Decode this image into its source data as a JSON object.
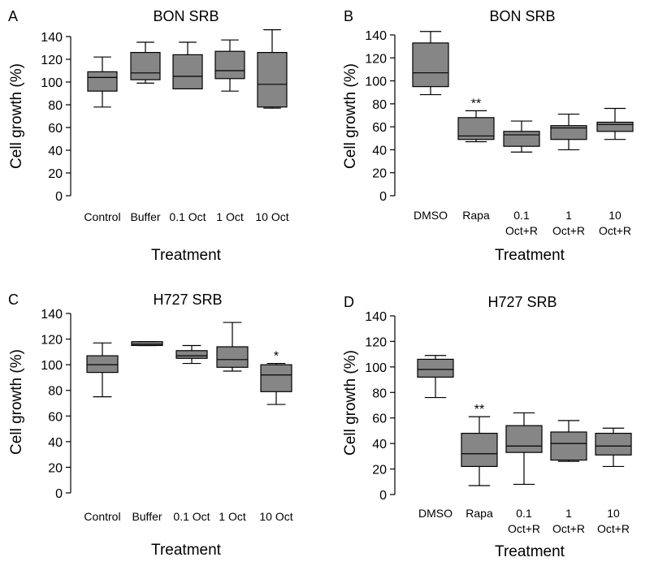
{
  "chart_data": [
    {
      "type": "box",
      "panel": "A",
      "title": "BON SRB",
      "xlabel": "Treatment",
      "ylabel": "Cell growth (%)",
      "ylim": [
        0,
        140
      ],
      "yticks": [
        0,
        20,
        40,
        60,
        80,
        100,
        120,
        140
      ],
      "categories": [
        [
          "Control"
        ],
        [
          "Buffer"
        ],
        [
          "0.1 Oct"
        ],
        [
          "1 Oct"
        ],
        [
          "10 Oct"
        ]
      ],
      "boxes": [
        {
          "min": 78,
          "q1": 92,
          "median": 104,
          "q3": 109,
          "max": 122,
          "annotation": ""
        },
        {
          "min": 99,
          "q1": 102,
          "median": 108,
          "q3": 126,
          "max": 135,
          "annotation": ""
        },
        {
          "min": 94,
          "q1": 94,
          "median": 105,
          "q3": 124,
          "max": 135,
          "annotation": ""
        },
        {
          "min": 92,
          "q1": 103,
          "median": 110,
          "q3": 127,
          "max": 137,
          "annotation": ""
        },
        {
          "min": 77,
          "q1": 78,
          "median": 98,
          "q3": 126,
          "max": 146,
          "annotation": ""
        }
      ]
    },
    {
      "type": "box",
      "panel": "B",
      "title": "BON SRB",
      "xlabel": "Treatment",
      "ylabel": "Cell growth (%)",
      "ylim": [
        0,
        140
      ],
      "yticks": [
        0,
        20,
        40,
        60,
        80,
        100,
        120,
        140
      ],
      "categories": [
        [
          "DMSO"
        ],
        [
          "Rapa"
        ],
        [
          "0.1",
          "Oct+R"
        ],
        [
          "1",
          "Oct+R"
        ],
        [
          "10",
          "Oct+R"
        ]
      ],
      "boxes": [
        {
          "min": 88,
          "q1": 95,
          "median": 107,
          "q3": 133,
          "max": 143,
          "annotation": ""
        },
        {
          "min": 47,
          "q1": 49,
          "median": 52,
          "q3": 68,
          "max": 74,
          "annotation": "**"
        },
        {
          "min": 38,
          "q1": 43,
          "median": 53,
          "q3": 56,
          "max": 65,
          "annotation": ""
        },
        {
          "min": 40,
          "q1": 49,
          "median": 59,
          "q3": 61,
          "max": 71,
          "annotation": ""
        },
        {
          "min": 49,
          "q1": 56,
          "median": 62,
          "q3": 64,
          "max": 76,
          "annotation": ""
        }
      ]
    },
    {
      "type": "box",
      "panel": "C",
      "title": "H727 SRB",
      "xlabel": "Treatment",
      "ylabel": "Cell growth (%)",
      "ylim": [
        0,
        140
      ],
      "yticks": [
        0,
        20,
        40,
        60,
        80,
        100,
        120,
        140
      ],
      "categories": [
        [
          "Control"
        ],
        [
          "Buffer"
        ],
        [
          "0.1 Oct"
        ],
        [
          "1 Oct"
        ],
        [
          "10 Oct"
        ]
      ],
      "boxes": [
        {
          "min": 75,
          "q1": 94,
          "median": 100,
          "q3": 107,
          "max": 117,
          "annotation": ""
        },
        {
          "min": 115,
          "q1": 115,
          "median": 116,
          "q3": 118,
          "max": 118,
          "annotation": ""
        },
        {
          "min": 101,
          "q1": 105,
          "median": 107,
          "q3": 111,
          "max": 115,
          "annotation": ""
        },
        {
          "min": 95,
          "q1": 98,
          "median": 104,
          "q3": 114,
          "max": 133,
          "annotation": ""
        },
        {
          "min": 69,
          "q1": 79,
          "median": 92,
          "q3": 100,
          "max": 101,
          "annotation": "*"
        }
      ]
    },
    {
      "type": "box",
      "panel": "D",
      "title": "H727 SRB",
      "xlabel": "Treatment",
      "ylabel": "Cell growth (%)",
      "ylim": [
        0,
        140
      ],
      "yticks": [
        0,
        20,
        40,
        60,
        80,
        100,
        120,
        140
      ],
      "categories": [
        [
          "DMSO"
        ],
        [
          "Rapa"
        ],
        [
          "0.1",
          "Oct+R"
        ],
        [
          "1",
          "Oct+R"
        ],
        [
          "10",
          "Oct+R"
        ]
      ],
      "boxes": [
        {
          "min": 76,
          "q1": 92,
          "median": 98,
          "q3": 106,
          "max": 109,
          "annotation": ""
        },
        {
          "min": 7,
          "q1": 22,
          "median": 32,
          "q3": 48,
          "max": 61,
          "annotation": "**"
        },
        {
          "min": 8,
          "q1": 33,
          "median": 38,
          "q3": 54,
          "max": 64,
          "annotation": ""
        },
        {
          "min": 26,
          "q1": 27,
          "median": 40,
          "q3": 49,
          "max": 58,
          "annotation": ""
        },
        {
          "min": 22,
          "q1": 31,
          "median": 38,
          "q3": 48,
          "max": 52,
          "annotation": ""
        }
      ]
    }
  ]
}
